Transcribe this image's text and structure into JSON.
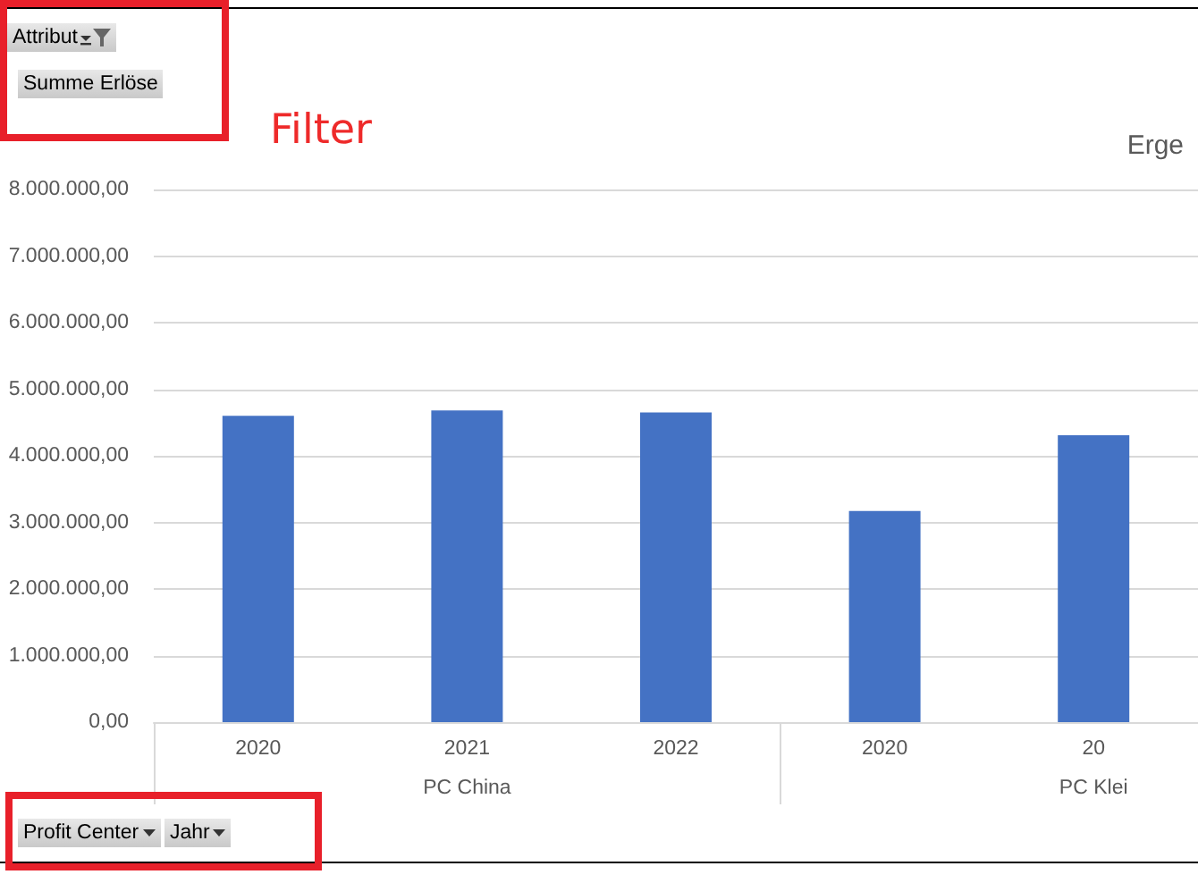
{
  "chart_data": {
    "type": "bar",
    "title": "Erge",
    "categories": [
      "2020",
      "2021",
      "2022",
      "2020",
      "20"
    ],
    "values": [
      4600000,
      4680000,
      4650000,
      3170000,
      4310000
    ],
    "color": "#4472c4",
    "ylim": [
      0,
      8000000
    ],
    "yticks": [
      {
        "value": 0,
        "label": "0,00"
      },
      {
        "value": 1000000,
        "label": "1.000.000,00"
      },
      {
        "value": 2000000,
        "label": "2.000.000,00"
      },
      {
        "value": 3000000,
        "label": "3.000.000,00"
      },
      {
        "value": 4000000,
        "label": "4.000.000,00"
      },
      {
        "value": 5000000,
        "label": "5.000.000,00"
      },
      {
        "value": 6000000,
        "label": "6.000.000,00"
      },
      {
        "value": 7000000,
        "label": "7.000.000,00"
      },
      {
        "value": 8000000,
        "label": "8.000.000,00"
      }
    ],
    "grid": "y",
    "annotations": [
      "Attribut",
      "Summe Erlöse",
      "Profit Center",
      "Jahr",
      "Filter",
      "PC China",
      "PC Klei"
    ]
  }
}
